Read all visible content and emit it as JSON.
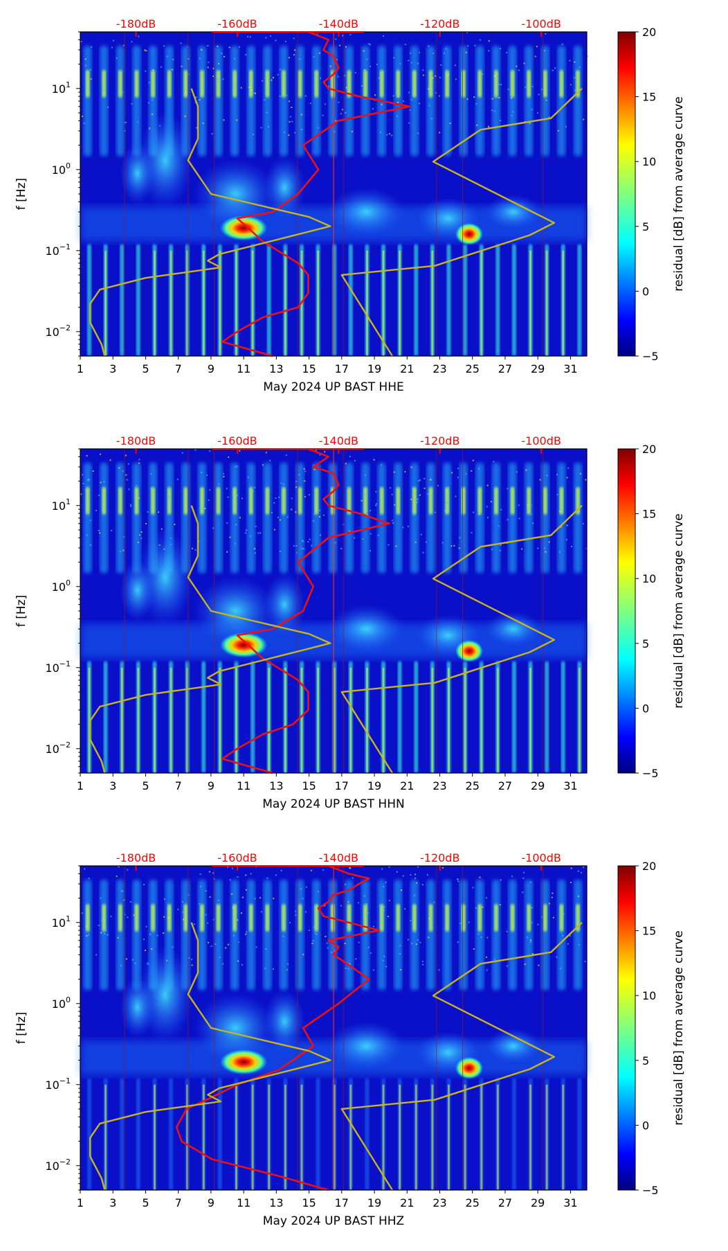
{
  "chart_data": [
    {
      "type": "heatmap",
      "title": "",
      "xlabel": "May 2024 UP BAST  HHE",
      "ylabel": "f [Hz]",
      "colorbar_label": "residual [dB] from average curve",
      "xlim": [
        1,
        32
      ],
      "ylim": [
        0.005,
        50
      ],
      "x_ticks": [
        "1",
        "3",
        "5",
        "7",
        "9",
        "11",
        "13",
        "15",
        "17",
        "19",
        "21",
        "23",
        "25",
        "27",
        "29",
        "31"
      ],
      "y_ticks": [
        {
          "v": 10,
          "label": "10^1"
        },
        {
          "v": 1,
          "label": "10^0"
        },
        {
          "v": 0.1,
          "label": "10^-1"
        },
        {
          "v": 0.01,
          "label": "10^-2"
        }
      ],
      "top_ticks": [
        "-180dB",
        "-160dB",
        "-140dB",
        "-120dB",
        "-100dB"
      ],
      "top_range_db": [
        -191,
        -91
      ],
      "colorbar_range": [
        -5,
        20
      ],
      "colorbar_ticks": [
        "20",
        "15",
        "10",
        "5",
        "0",
        "−5"
      ],
      "series": [
        {
          "name": "average PSD curve",
          "color": "#ee1111",
          "x_db": [
            -153,
            -163,
            -160,
            -155,
            -148,
            -146,
            -146,
            -148,
            -152,
            -155,
            -157,
            -160,
            -153,
            -148,
            -144,
            -147,
            -140,
            -126,
            -136,
            -142,
            -143,
            -141,
            -140,
            -141,
            -143,
            -142,
            -146
          ],
          "f": [
            0.005,
            0.0075,
            0.01,
            0.015,
            0.02,
            0.03,
            0.05,
            0.07,
            0.1,
            0.13,
            0.17,
            0.25,
            0.3,
            0.5,
            1,
            2,
            4,
            6,
            8,
            10,
            12,
            15,
            18,
            25,
            30,
            40,
            50
          ]
        },
        {
          "name": "noise model curve",
          "color": "#c8b41e",
          "x_day": [
            2.5,
            2.3,
            1.6,
            1.6,
            2.2,
            5,
            9.6,
            8.8,
            9.5,
            16.3,
            15,
            9,
            7.6,
            8.2,
            8.2,
            7.8
          ],
          "f": [
            0.005,
            0.007,
            0.013,
            0.022,
            0.033,
            0.046,
            0.062,
            0.075,
            0.09,
            0.2,
            0.26,
            0.5,
            1.3,
            2.4,
            6,
            10
          ]
        },
        {
          "name": "noise model curve",
          "color": "#c8b41e",
          "x_day": [
            20.1,
            17.0,
            22.7,
            28.5,
            30.0,
            22.6,
            25.5,
            29.8,
            31.7
          ],
          "f": [
            0.005,
            0.05,
            0.065,
            0.155,
            0.22,
            1.25,
            3.1,
            4.3,
            10
          ]
        }
      ],
      "features": {
        "diurnal_columns_high_band": "days 1-32, f > 1.2 Hz",
        "bright_spots": [
          {
            "x_day": 11,
            "f": 0.19,
            "dB": 20
          },
          {
            "x_day": 24.8,
            "f": 0.16,
            "dB": 19
          }
        ],
        "microseism_band": "0.13-0.35 Hz elevated"
      }
    },
    {
      "type": "heatmap",
      "title": "",
      "xlabel": "May 2024 UP BAST  HHN",
      "ylabel": "f [Hz]",
      "colorbar_label": "residual [dB] from average curve",
      "xlim": [
        1,
        32
      ],
      "ylim": [
        0.005,
        50
      ],
      "x_ticks": [
        "1",
        "3",
        "5",
        "7",
        "9",
        "11",
        "13",
        "15",
        "17",
        "19",
        "21",
        "23",
        "25",
        "27",
        "29",
        "31"
      ],
      "y_ticks": [
        {
          "v": 10,
          "label": "10^1"
        },
        {
          "v": 1,
          "label": "10^0"
        },
        {
          "v": 0.1,
          "label": "10^-1"
        },
        {
          "v": 0.01,
          "label": "10^-2"
        }
      ],
      "top_ticks": [
        "-180dB",
        "-160dB",
        "-140dB",
        "-120dB",
        "-100dB"
      ],
      "top_range_db": [
        -191,
        -91
      ],
      "colorbar_range": [
        -5,
        20
      ],
      "colorbar_ticks": [
        "20",
        "15",
        "10",
        "5",
        "0",
        "−5"
      ],
      "series": [
        {
          "name": "average PSD curve",
          "color": "#ee1111",
          "x_db": [
            -153,
            -163,
            -160,
            -155,
            -149,
            -146,
            -146,
            -148,
            -152,
            -155,
            -157,
            -160,
            -153,
            -147,
            -145,
            -148,
            -142,
            -130,
            -136,
            -142,
            -143,
            -141,
            -140,
            -141,
            -145,
            -142,
            -146
          ],
          "f": [
            0.005,
            0.0075,
            0.01,
            0.015,
            0.02,
            0.03,
            0.05,
            0.07,
            0.1,
            0.13,
            0.17,
            0.25,
            0.3,
            0.5,
            1,
            2,
            4,
            6,
            8,
            10,
            12,
            15,
            18,
            25,
            30,
            40,
            50
          ]
        },
        {
          "name": "noise model curve",
          "color": "#c8b41e",
          "x_day": [
            2.5,
            2.3,
            1.6,
            1.6,
            2.2,
            5,
            9.6,
            8.8,
            9.5,
            16.3,
            15,
            9,
            7.6,
            8.2,
            8.2,
            7.8
          ],
          "f": [
            0.005,
            0.007,
            0.013,
            0.022,
            0.033,
            0.046,
            0.062,
            0.075,
            0.09,
            0.2,
            0.26,
            0.5,
            1.3,
            2.4,
            6,
            10
          ]
        },
        {
          "name": "noise model curve",
          "color": "#c8b41e",
          "x_day": [
            20.1,
            17.0,
            22.7,
            28.5,
            30.0,
            22.6,
            25.5,
            29.8,
            31.7
          ],
          "f": [
            0.005,
            0.05,
            0.065,
            0.155,
            0.22,
            1.25,
            3.1,
            4.3,
            10
          ]
        }
      ],
      "features": {
        "diurnal_columns_high_band": "days 1-32, f > 1.2 Hz",
        "bright_spots": [
          {
            "x_day": 11,
            "f": 0.19,
            "dB": 20
          },
          {
            "x_day": 24.8,
            "f": 0.16,
            "dB": 19
          }
        ],
        "microseism_band": "0.13-0.35 Hz elevated"
      }
    },
    {
      "type": "heatmap",
      "title": "",
      "xlabel": "May 2024 UP BAST  HHZ",
      "ylabel": "f [Hz]",
      "colorbar_label": "residual [dB] from average curve",
      "xlim": [
        1,
        32
      ],
      "ylim": [
        0.005,
        50
      ],
      "x_ticks": [
        "1",
        "3",
        "5",
        "7",
        "9",
        "11",
        "13",
        "15",
        "17",
        "19",
        "21",
        "23",
        "25",
        "27",
        "29",
        "31"
      ],
      "y_ticks": [
        {
          "v": 10,
          "label": "10^1"
        },
        {
          "v": 1,
          "label": "10^0"
        },
        {
          "v": 0.1,
          "label": "10^-1"
        },
        {
          "v": 0.01,
          "label": "10^-2"
        }
      ],
      "top_ticks": [
        "-180dB",
        "-160dB",
        "-140dB",
        "-120dB",
        "-100dB"
      ],
      "top_range_db": [
        -191,
        -91
      ],
      "colorbar_range": [
        -5,
        20
      ],
      "colorbar_ticks": [
        "20",
        "15",
        "10",
        "5",
        "0",
        "−5"
      ],
      "series": [
        {
          "name": "average PSD curve",
          "color": "#ee1111",
          "x_db": [
            -142,
            -152,
            -165,
            -171,
            -172,
            -170,
            -165,
            -160,
            -152,
            -149,
            -145,
            -147,
            -140,
            -134,
            -138,
            -141,
            -140,
            -142,
            -132,
            -138,
            -143,
            -144,
            -142,
            -141,
            -138,
            -136,
            -134,
            -138,
            -142
          ],
          "f": [
            0.005,
            0.0075,
            0.012,
            0.02,
            0.03,
            0.05,
            0.07,
            0.1,
            0.15,
            0.2,
            0.3,
            0.5,
            1,
            2,
            3,
            4,
            5,
            6,
            8,
            10,
            12,
            15,
            18,
            22,
            25,
            30,
            35,
            40,
            50
          ]
        },
        {
          "name": "noise model curve",
          "color": "#c8b41e",
          "x_day": [
            2.5,
            2.3,
            1.6,
            1.6,
            2.2,
            5,
            9.6,
            8.8,
            9.5,
            16.3,
            15,
            9,
            7.6,
            8.2,
            8.2,
            7.8
          ],
          "f": [
            0.005,
            0.007,
            0.013,
            0.022,
            0.033,
            0.046,
            0.062,
            0.075,
            0.09,
            0.2,
            0.26,
            0.5,
            1.3,
            2.4,
            6,
            10
          ]
        },
        {
          "name": "noise model curve",
          "color": "#c8b41e",
          "x_day": [
            20.1,
            17.0,
            22.7,
            28.5,
            30.0,
            22.6,
            25.5,
            29.8,
            31.7
          ],
          "f": [
            0.005,
            0.05,
            0.065,
            0.155,
            0.22,
            1.25,
            3.1,
            4.3,
            10
          ]
        }
      ],
      "features": {
        "diurnal_columns_high_band": "days 1-32, f > 1.2 Hz",
        "bright_spots": [
          {
            "x_day": 11,
            "f": 0.19,
            "dB": 20
          },
          {
            "x_day": 24.8,
            "f": 0.16,
            "dB": 19
          }
        ],
        "microseism_band": "0.13-0.35 Hz elevated"
      }
    }
  ]
}
